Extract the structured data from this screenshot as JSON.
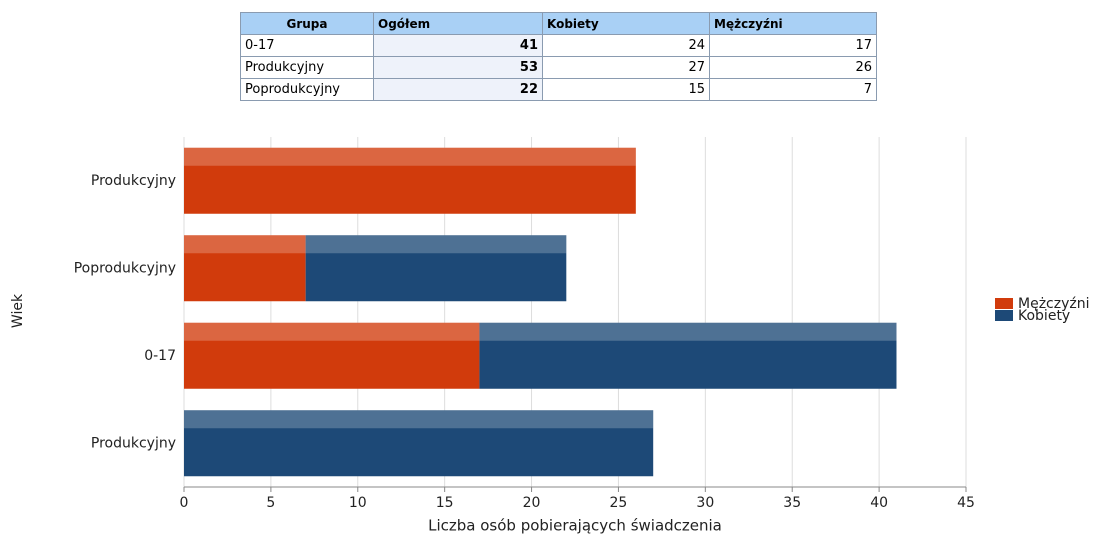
{
  "table": {
    "header": [
      "Grupa",
      "Ogółem",
      "Kobiety",
      "Mężczyźni"
    ],
    "rows": [
      [
        "0-17",
        41,
        24,
        17
      ],
      [
        "Produkcyjny",
        53,
        27,
        26
      ],
      [
        "Poprodukcyjny",
        22,
        15,
        7
      ]
    ]
  },
  "chart_data": {
    "type": "hbar_stacked",
    "categories": [
      "Produkcyjny",
      "Poprodukcyjny",
      "0-17",
      "Produkcyjny"
    ],
    "series": [
      {
        "name": "Mężczyźni",
        "color": "#d13b0c",
        "values": [
          26,
          7,
          17,
          null
        ]
      },
      {
        "name": "Kobiety",
        "color": "#1d4977",
        "values": [
          null,
          15,
          24,
          27
        ]
      }
    ],
    "xlim": [
      0,
      45
    ],
    "xticks": [
      0,
      5,
      10,
      15,
      20,
      25,
      30,
      35,
      40,
      45
    ],
    "xlabel": "Liczba osób pobierających świadczenia",
    "ylabel": "Wiek",
    "grid": true,
    "legend": "right"
  }
}
